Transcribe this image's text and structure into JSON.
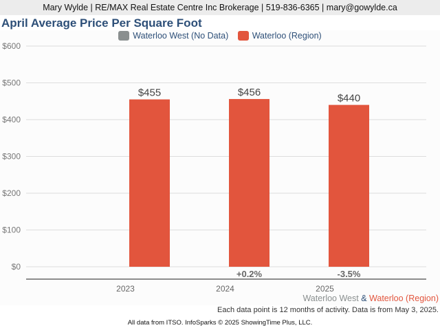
{
  "header": {
    "contact_line": "Mary Wylde | RE/MAX Real Estate Centre Inc Brokerage | 519-836-6365 | mary@gowylde.ca"
  },
  "colors": {
    "primary_series": "#e2553d",
    "no_data_series": "#8a8f8f",
    "title": "#2d4f78",
    "grid": "#dddddd",
    "axis": "#666666"
  },
  "chart_data": {
    "type": "bar",
    "title": "April Average Price Per Square Foot",
    "xlabel": "",
    "ylabel": "",
    "ylim": [
      0,
      600
    ],
    "yticks": [
      0,
      100,
      200,
      300,
      400,
      500,
      600
    ],
    "ytick_labels": [
      "$0",
      "$100",
      "$200",
      "$300",
      "$400",
      "$500",
      "$600"
    ],
    "grid": true,
    "legend_position": "top-center",
    "legend": [
      {
        "name": "Waterloo West (No Data)",
        "color": "#8a8f8f"
      },
      {
        "name": "Waterloo (Region)",
        "color": "#e2553d"
      }
    ],
    "categories": [
      "2023",
      "2024",
      "2025"
    ],
    "series": [
      {
        "name": "Waterloo West",
        "values": [
          null,
          null,
          null
        ]
      },
      {
        "name": "Waterloo (Region)",
        "values": [
          455,
          456,
          440
        ],
        "labels": [
          "$455",
          "$456",
          "$440"
        ]
      }
    ],
    "change_labels": [
      "",
      "+0.2%",
      "-3.5%"
    ]
  },
  "footer": {
    "series_note_a": "Waterloo West",
    "series_note_amp": " & ",
    "series_note_b": "Waterloo (Region)",
    "data_note": "Each data point is 12 months of activity. Data is from May 3, 2025.",
    "source": "All data from ITSO. InfoSparks © 2025 ShowingTime Plus, LLC."
  }
}
